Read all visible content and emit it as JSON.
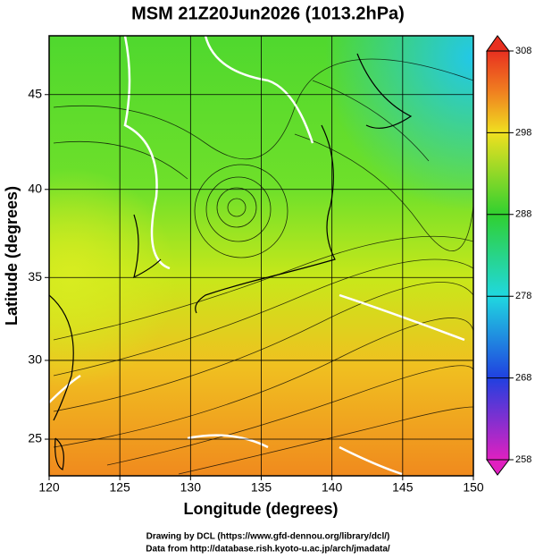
{
  "title": "MSM 21Z20Jun2026 (1013.2hPa)",
  "map": {
    "x_label": "Longitude (degrees)",
    "y_label": "Latitude  (degrees)",
    "xlim": [
      120,
      150
    ],
    "xticks": [
      120,
      125,
      130,
      135,
      140,
      145,
      150
    ],
    "ylim": [
      22.6,
      47.9
    ],
    "yticks": [
      25,
      30,
      35,
      40,
      45
    ],
    "grid": true
  },
  "colorbar": {
    "lim": [
      258,
      308
    ],
    "ticks": [
      258,
      268,
      278,
      288,
      298,
      308
    ]
  },
  "credits": [
    "Drawing by DCL (https://www.gfd-dennou.org/library/dcl/)",
    "Data from http://database.rish.kyoto-u.ac.jp/arch/jmadata/"
  ]
}
